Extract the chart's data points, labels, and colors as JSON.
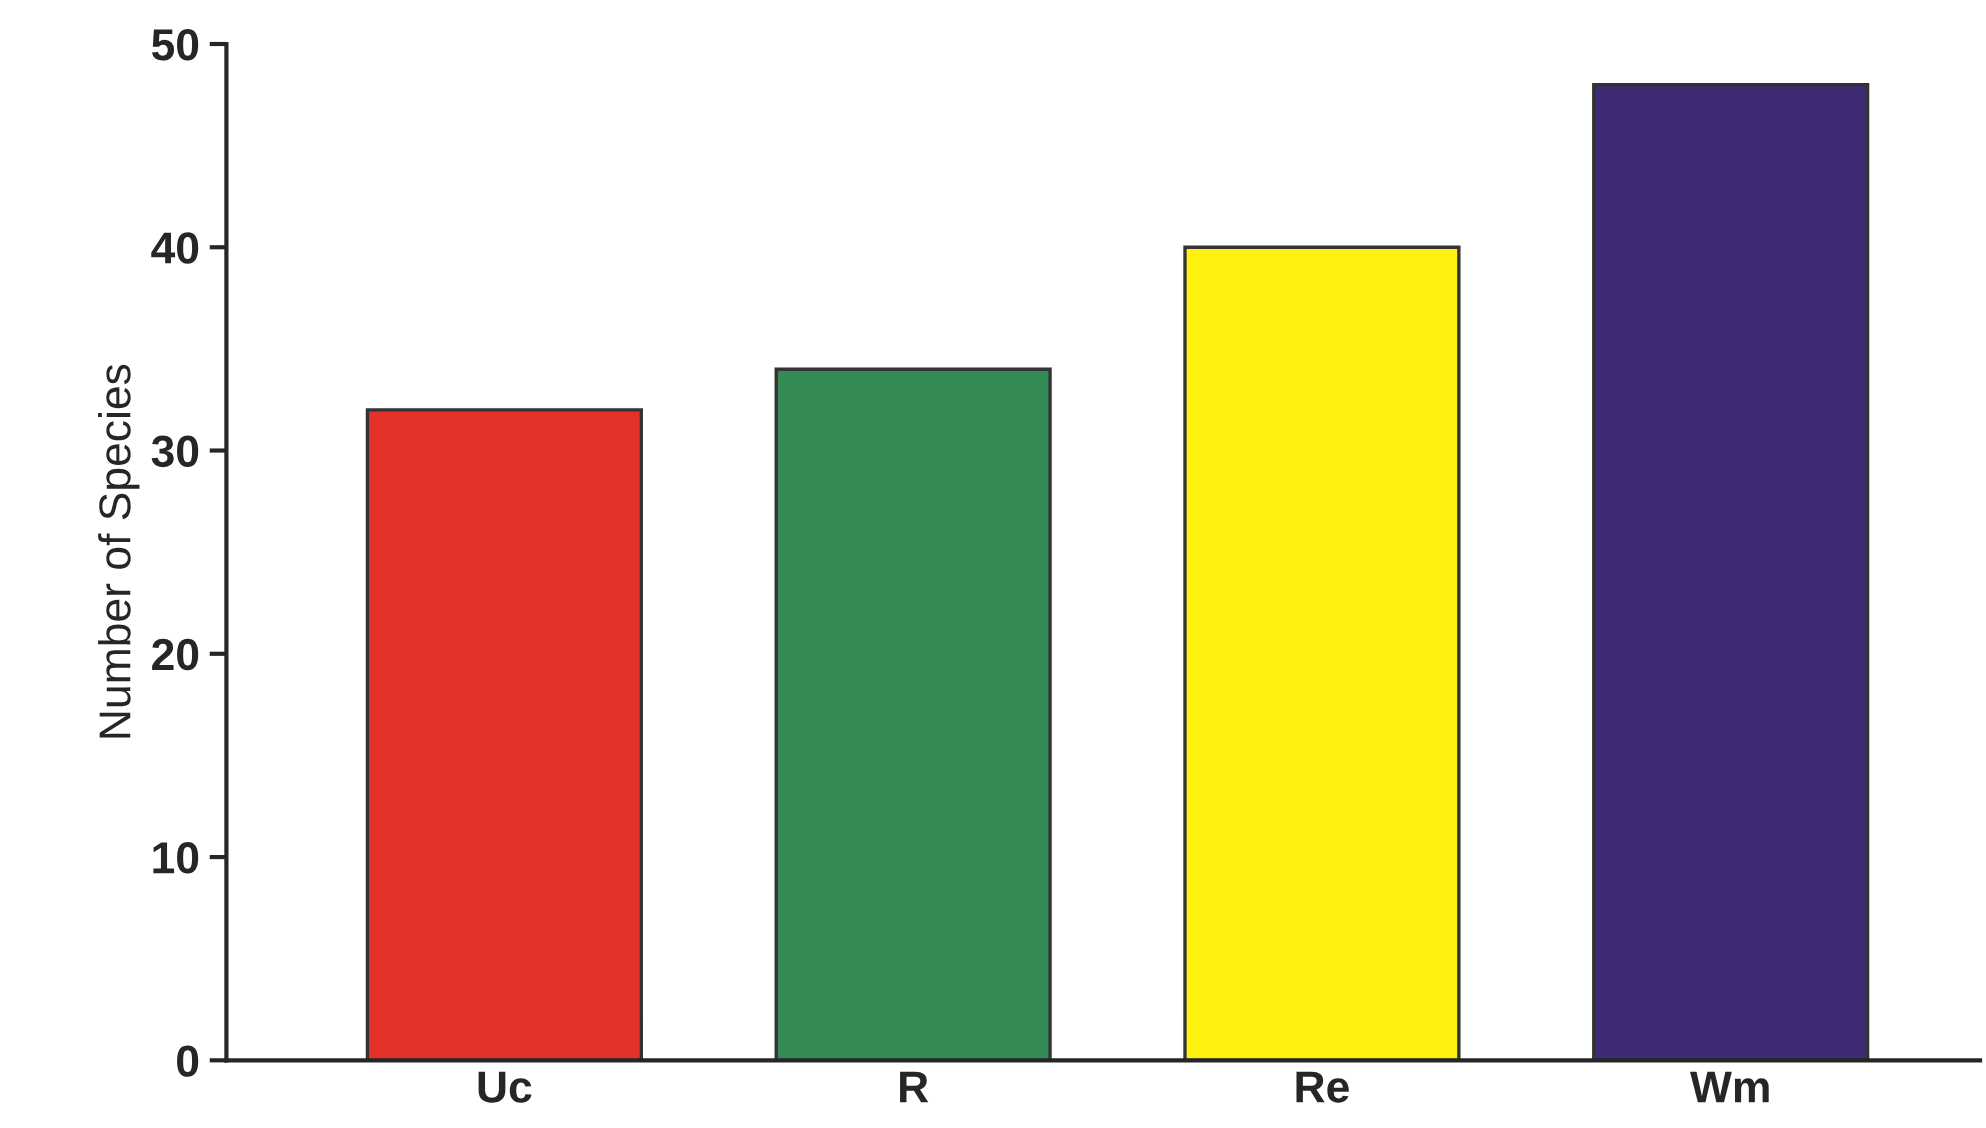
{
  "chart_data": {
    "type": "bar",
    "ylabel": "Number of Species",
    "categories": [
      "Uc",
      "R",
      "Re",
      "Wm"
    ],
    "values": [
      32,
      34,
      40,
      48
    ],
    "colors": [
      "#e4312b",
      "#348a55",
      "#fff10f",
      "#3f2a74"
    ],
    "ylim": [
      0,
      50
    ],
    "yticks": [
      0,
      10,
      20,
      30,
      40,
      50
    ],
    "grid": false,
    "legend": false
  }
}
